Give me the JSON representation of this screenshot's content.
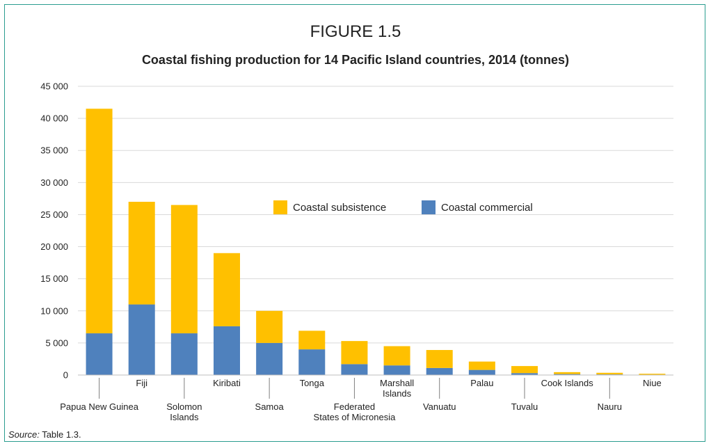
{
  "figure": {
    "label": "FIGURE 1.5",
    "title": "Coastal fishing production for 14 Pacific Island countries, 2014 (tonnes)"
  },
  "source": {
    "label": "Source:",
    "text": "Table 1.3."
  },
  "colors": {
    "subsistence": "#ffc000",
    "commercial": "#4f81bd",
    "grid": "#d9d9d9",
    "frame": "#2a9d8f"
  },
  "chart_data": {
    "type": "bar",
    "stacked": true,
    "title": "Coastal fishing production for 14 Pacific Island countries, 2014 (tonnes)",
    "xlabel": "",
    "ylabel": "",
    "ylim": [
      0,
      45000
    ],
    "yticks": [
      0,
      5000,
      10000,
      15000,
      20000,
      25000,
      30000,
      35000,
      40000,
      45000
    ],
    "ytick_labels": [
      "0",
      "5 000",
      "10 000",
      "15 000",
      "20 000",
      "25 000",
      "30 000",
      "35 000",
      "40 000",
      "45 000"
    ],
    "grid": true,
    "legend_position": "center",
    "categories": [
      "Papua New Guinea",
      "Fiji",
      "Solomon Islands",
      "Kiribati",
      "Samoa",
      "Tonga",
      "Federated States of Micronesia",
      "Marshall Islands",
      "Vanuatu",
      "Palau",
      "Tuvalu",
      "Cook Islands",
      "Nauru",
      "Niue"
    ],
    "category_label_lines": [
      [
        "Papua New Guinea"
      ],
      [
        "Fiji"
      ],
      [
        "Solomon",
        "Islands"
      ],
      [
        "Kiribati"
      ],
      [
        "Samoa"
      ],
      [
        "Tonga"
      ],
      [
        "Federated",
        "States of Micronesia"
      ],
      [
        "Marshall",
        "Islands"
      ],
      [
        "Vanuatu"
      ],
      [
        "Palau"
      ],
      [
        "Tuvalu"
      ],
      [
        "Cook Islands"
      ],
      [
        "Nauru"
      ],
      [
        "Niue"
      ]
    ],
    "series": [
      {
        "name": "Coastal commercial",
        "values": [
          6500,
          11000,
          6500,
          7600,
          5000,
          4000,
          1700,
          1500,
          1100,
          800,
          300,
          150,
          100,
          20
        ]
      },
      {
        "name": "Coastal subsistence",
        "values": [
          35000,
          16000,
          20000,
          11400,
          5000,
          2900,
          3600,
          3000,
          2800,
          1300,
          1100,
          300,
          250,
          180
        ]
      }
    ]
  }
}
